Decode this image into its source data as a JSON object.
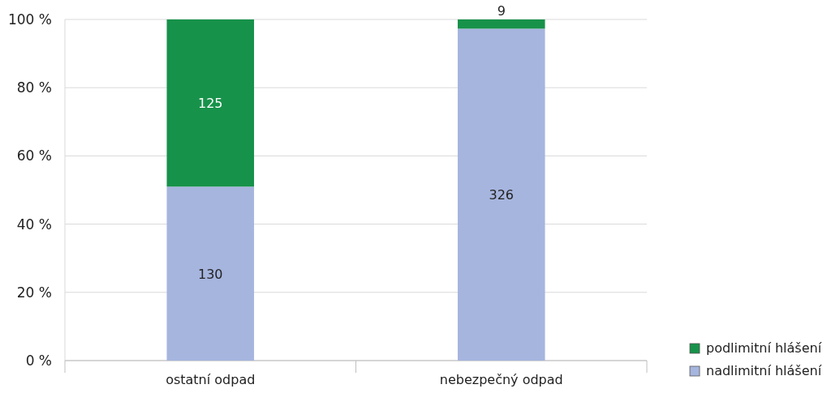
{
  "chart_data": {
    "type": "bar",
    "stacked": true,
    "categories": [
      "ostatní odpad",
      "nebezpečný odpad"
    ],
    "series": [
      {
        "name": "nadlimitní hlášení",
        "color": "#a6b5de",
        "values": [
          51,
          97.3
        ]
      },
      {
        "name": "podlimitní hlášení",
        "color": "#17924a",
        "values": [
          49,
          2.7
        ]
      }
    ],
    "annotations": [
      "130",
      "326",
      "125",
      "9"
    ],
    "ylim": [
      0,
      100
    ],
    "yticks": [
      {
        "value": 0,
        "label": "0 %"
      },
      {
        "value": 20,
        "label": "20 %"
      },
      {
        "value": 40,
        "label": "40 %"
      },
      {
        "value": 60,
        "label": "60 %"
      },
      {
        "value": 80,
        "label": "80 %"
      },
      {
        "value": 100,
        "label": "100 %"
      }
    ],
    "grid": "y",
    "legend": "bottom right"
  }
}
